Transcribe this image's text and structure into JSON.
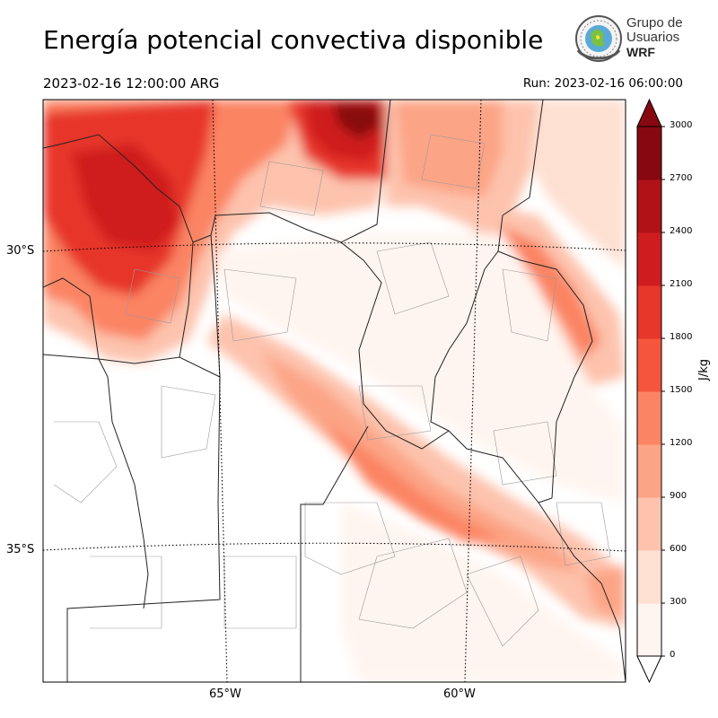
{
  "header": {
    "title": "Energía potencial convectiva disponible",
    "valid_time": "2023-02-16 12:00:00 ARG",
    "run_time": "Run: 2023-02-16 06:00:00"
  },
  "logo": {
    "line1": "Grupo de",
    "line2": "Usuarios",
    "line3": "WRF"
  },
  "map": {
    "lat_labels": [
      "30°S",
      "35°S"
    ],
    "lon_labels": [
      "65°W",
      "60°W"
    ]
  },
  "colorbar": {
    "unit": "J/kg",
    "ticks": [
      "0",
      "300",
      "600",
      "900",
      "1200",
      "1500",
      "1800",
      "2100",
      "2400",
      "2700",
      "3000"
    ],
    "colors": [
      "#fff5f0",
      "#fee0d2",
      "#fdc3ad",
      "#fca486",
      "#fb8464",
      "#f6553d",
      "#e7362a",
      "#cf1d1f",
      "#b11218",
      "#880811"
    ]
  }
}
